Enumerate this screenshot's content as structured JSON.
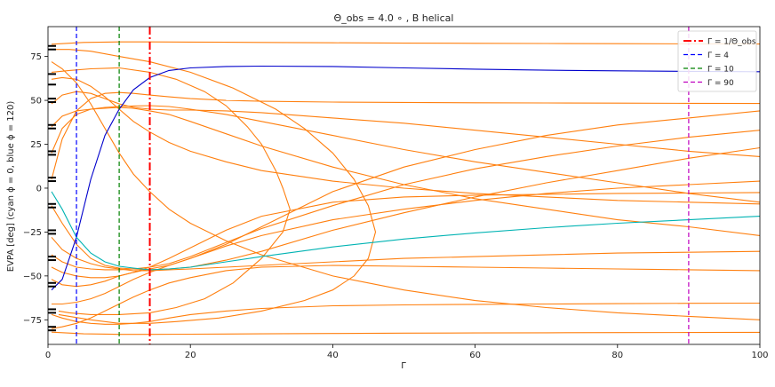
{
  "chart_data": {
    "type": "line",
    "title": "Θ_obs = 4.0 ∘ , B helical",
    "xlabel": "Γ",
    "ylabel": "EVPA [deg] (cyan ϕ = 0, blue ϕ = 120)",
    "xlim": [
      0,
      100
    ],
    "ylim": [
      -89,
      92
    ],
    "xticks": [
      0,
      20,
      40,
      60,
      80,
      100
    ],
    "yticks": [
      -75,
      -50,
      -25,
      0,
      25,
      50,
      75
    ],
    "grid": false,
    "legend_position": "top-right",
    "legend": [
      {
        "label": "Γ = 1/Θ_obs",
        "color": "#ff0000",
        "style": "dashdot"
      },
      {
        "label": "Γ = 4",
        "color": "#0000ff",
        "style": "dashed"
      },
      {
        "label": "Γ = 10",
        "color": "#008000",
        "style": "dashed"
      },
      {
        "label": "Γ = 90",
        "color": "#bf00bf",
        "style": "dashed"
      }
    ],
    "vlines": [
      {
        "x": 14.3,
        "color": "#ff0000",
        "style": "dashdot",
        "width": 2
      },
      {
        "x": 4,
        "color": "#0000ff",
        "style": "dashed",
        "width": 1.2
      },
      {
        "x": 10,
        "color": "#008000",
        "style": "dashed",
        "width": 1.2
      },
      {
        "x": 90,
        "color": "#bf00bf",
        "style": "dashed",
        "width": 1.2
      }
    ],
    "start_ticks": [
      81,
      79,
      65,
      59,
      51,
      49,
      36,
      34,
      21,
      19,
      6,
      4,
      -9,
      -11,
      -24,
      -26,
      -39,
      -41,
      -54,
      -56,
      -69,
      -71,
      -79,
      -81
    ],
    "series": [
      {
        "color": "#0000cc",
        "x": [
          0.5,
          2,
          4,
          6,
          8,
          10,
          12,
          14.3,
          17,
          20,
          25,
          30,
          40,
          50,
          60,
          70,
          80,
          90,
          100
        ],
        "y": [
          -58,
          -52,
          -28,
          5,
          30,
          45,
          56,
          63,
          67,
          68.5,
          69.3,
          69.5,
          69.3,
          68.5,
          67.8,
          67.2,
          66.8,
          66.5,
          66.3
        ]
      },
      {
        "color": "#00b3b3",
        "x": [
          0.5,
          2,
          4,
          6,
          8,
          10,
          12,
          14.3,
          17,
          20,
          25,
          30,
          40,
          50,
          60,
          70,
          80,
          90,
          100
        ],
        "y": [
          -2,
          -12,
          -28,
          -37,
          -42,
          -44.5,
          -45.5,
          -46.5,
          -46,
          -45,
          -42,
          -39,
          -33.5,
          -29,
          -25.5,
          -22.5,
          -20,
          -18,
          -16
        ]
      },
      {
        "color": "#ff7f0e",
        "x": [
          0.5,
          5,
          10,
          14.3,
          20,
          30,
          40,
          50,
          60,
          70,
          80,
          90,
          100
        ],
        "y": [
          82,
          83,
          83.3,
          83.3,
          83.2,
          83,
          82.8,
          82.6,
          82.5,
          82.4,
          82.3,
          82.2,
          82.1
        ]
      },
      {
        "color": "#ff7f0e",
        "x": [
          0.5,
          5,
          10,
          14.3,
          20,
          30,
          40,
          50,
          60,
          70,
          80,
          90,
          100
        ],
        "y": [
          -82,
          -83,
          -83.3,
          -83.3,
          -83.2,
          -83,
          -82.8,
          -82.6,
          -82.5,
          -82.4,
          -82.3,
          -82.2,
          -82.1
        ]
      },
      {
        "color": "#ff7f0e",
        "x": [
          0.5,
          3,
          6,
          10,
          14.3,
          18,
          22,
          25,
          28,
          30,
          32,
          33,
          34,
          33,
          30,
          26,
          22,
          18,
          14.3,
          10,
          6,
          3,
          1.5
        ],
        "y": [
          66,
          67,
          68,
          68.5,
          66,
          62,
          55,
          47,
          35,
          25,
          10,
          0,
          -12,
          -25,
          -40,
          -54,
          -63,
          -68,
          -71,
          -72,
          -72,
          -71,
          -70
        ]
      },
      {
        "color": "#ff7f0e",
        "x": [
          0.5,
          3,
          6,
          10,
          14.3,
          20,
          26,
          32,
          36,
          40,
          43,
          45,
          46,
          45,
          43,
          40,
          36,
          30,
          24,
          18,
          14.3,
          10,
          6,
          3,
          1.5
        ],
        "y": [
          79,
          79,
          78,
          75,
          72,
          66,
          57,
          45,
          34,
          20,
          5,
          -10,
          -25,
          -40,
          -50,
          -58,
          -64,
          -70,
          -74,
          -76,
          -77,
          -77,
          -75,
          -73,
          -72
        ]
      },
      {
        "color": "#ff7f0e",
        "x": [
          0.5,
          2,
          4,
          6,
          8,
          10,
          12,
          14.3,
          17,
          20,
          25,
          30,
          40,
          50,
          60,
          70,
          80,
          90,
          100
        ],
        "y": [
          5,
          28,
          44,
          51,
          54,
          54.5,
          54,
          53,
          52,
          51,
          50,
          49.5,
          49,
          48.8,
          48.6,
          48.5,
          48.4,
          48.3,
          48.2
        ]
      },
      {
        "color": "#ff7f0e",
        "x": [
          0.5,
          2,
          4,
          6,
          8,
          10,
          12,
          14.3,
          17,
          20,
          25,
          30,
          40,
          50,
          60,
          70,
          80,
          90,
          100
        ],
        "y": [
          48,
          53,
          55,
          54,
          51,
          48,
          46,
          45,
          44.5,
          44.5,
          44,
          43,
          40,
          37,
          33,
          29,
          25,
          21,
          18
        ]
      },
      {
        "color": "#ff7f0e",
        "x": [
          0.5,
          2,
          4,
          6,
          8,
          10,
          12,
          14.3,
          17,
          20,
          25,
          30,
          40,
          50,
          60,
          70,
          80,
          90,
          100
        ],
        "y": [
          20,
          34,
          42,
          45,
          46,
          46.5,
          46.8,
          47,
          46.5,
          45,
          42,
          38,
          30,
          22,
          15,
          9,
          3,
          -3,
          -8
        ]
      },
      {
        "color": "#ff7f0e",
        "x": [
          0.5,
          2,
          4,
          6,
          8,
          10,
          12,
          14.3,
          17,
          20,
          25,
          30,
          40,
          50,
          60,
          70,
          80,
          90,
          100
        ],
        "y": [
          35,
          41,
          44,
          45,
          45.5,
          46,
          45.5,
          44,
          42,
          38,
          31,
          24,
          12,
          2,
          -6,
          -12,
          -18,
          -22,
          -27
        ]
      },
      {
        "color": "#ff7f0e",
        "x": [
          0.5,
          2,
          4,
          6,
          8,
          10,
          12,
          14.3,
          17,
          20,
          25,
          30,
          40,
          50,
          60,
          70,
          80,
          90,
          100
        ],
        "y": [
          -10,
          -20,
          -32,
          -40,
          -44,
          -45.5,
          -46,
          -46.5,
          -46,
          -45,
          -41,
          -36,
          -24,
          -14,
          -5,
          3,
          10,
          17,
          23
        ]
      },
      {
        "color": "#ff7f0e",
        "x": [
          0.5,
          2,
          4,
          6,
          8,
          10,
          12,
          14.3,
          17,
          20,
          25,
          30,
          40,
          50,
          60,
          70,
          80,
          90,
          100
        ],
        "y": [
          -38,
          -42,
          -45,
          -46,
          -46.5,
          -46.5,
          -46,
          -45,
          -43,
          -39,
          -31,
          -23,
          -10,
          2,
          11,
          18,
          24,
          29,
          33
        ]
      },
      {
        "color": "#ff7f0e",
        "x": [
          0.5,
          2,
          4,
          6,
          8,
          10,
          12,
          14.3,
          17,
          20,
          25,
          30,
          40,
          50,
          60,
          70,
          80,
          90,
          100
        ],
        "y": [
          -52,
          -55,
          -56,
          -55,
          -53,
          -50,
          -48,
          -46,
          -44,
          -40,
          -32,
          -22,
          -2,
          12,
          22,
          30,
          36,
          40,
          44
        ]
      },
      {
        "color": "#ff7f0e",
        "x": [
          0.5,
          2,
          4,
          6,
          8,
          10,
          12,
          14.3,
          17,
          20,
          25,
          30,
          40,
          50,
          60,
          70,
          80,
          90,
          100
        ],
        "y": [
          -66,
          -66,
          -65,
          -63,
          -60,
          -56,
          -52,
          -48,
          -44,
          -40,
          -33,
          -27,
          -18,
          -12,
          -7,
          -3,
          0,
          2,
          4
        ]
      },
      {
        "color": "#ff7f0e",
        "x": [
          0.5,
          2,
          4,
          6,
          8,
          10,
          12,
          14.3,
          17,
          20,
          25,
          30,
          40,
          50,
          60,
          70,
          80,
          90,
          100
        ],
        "y": [
          62,
          63,
          62,
          58,
          52,
          45,
          38,
          32,
          26,
          21,
          15,
          10,
          4,
          0,
          -3,
          -5,
          -7,
          -8,
          -9
        ]
      },
      {
        "color": "#ff7f0e",
        "x": [
          0.5,
          2,
          4,
          6,
          8,
          10,
          12,
          14.3,
          17,
          20,
          25,
          30,
          40,
          50,
          60,
          70,
          80,
          90,
          100
        ],
        "y": [
          -28,
          -35,
          -40,
          -43,
          -45,
          -46,
          -47,
          -47,
          -46.5,
          -46,
          -45,
          -44,
          -42,
          -40,
          -39,
          -38,
          -37,
          -36.5,
          -36
        ]
      },
      {
        "color": "#ff7f0e",
        "x": [
          0.5,
          2,
          4,
          6,
          8,
          10,
          12,
          14.3,
          17,
          20,
          25,
          30,
          40,
          50,
          60,
          70,
          80,
          90,
          100
        ],
        "y": [
          -80,
          -79,
          -77,
          -74,
          -70,
          -66,
          -62,
          -58,
          -54,
          -51,
          -47,
          -45,
          -44,
          -44.5,
          -45,
          -45.5,
          -46,
          -46.5,
          -47
        ]
      },
      {
        "color": "#ff7f0e",
        "x": [
          0.5,
          2,
          4,
          6,
          8,
          10,
          12,
          14.3,
          17,
          20,
          25,
          30,
          40,
          50,
          60,
          70,
          80,
          90,
          100
        ],
        "y": [
          72,
          68,
          60,
          48,
          34,
          20,
          8,
          -2,
          -12,
          -20,
          -30,
          -38,
          -50,
          -58,
          -64,
          -68,
          -71,
          -73,
          -75
        ]
      },
      {
        "color": "#ff7f0e",
        "x": [
          0.5,
          2,
          4,
          6,
          8,
          10,
          12,
          14.3,
          17,
          20,
          25,
          30,
          40,
          50,
          60,
          70,
          80,
          90,
          100
        ],
        "y": [
          -72,
          -74,
          -76,
          -77,
          -77.5,
          -77.5,
          -77,
          -76,
          -74,
          -72,
          -70,
          -68.5,
          -67,
          -66.5,
          -66.2,
          -66,
          -65.8,
          -65.6,
          -65.5
        ]
      },
      {
        "color": "#ff7f0e",
        "x": [
          0.5,
          2,
          4,
          6,
          8,
          10,
          12,
          14.3,
          17,
          20,
          25,
          30,
          40,
          50,
          60,
          70,
          80,
          90,
          100
        ],
        "y": [
          -45,
          -48,
          -50,
          -51,
          -51,
          -50,
          -48,
          -45,
          -40,
          -34,
          -24,
          -16,
          -8,
          -5,
          -4,
          -3.5,
          -3,
          -2.8,
          -2.5
        ]
      }
    ]
  }
}
